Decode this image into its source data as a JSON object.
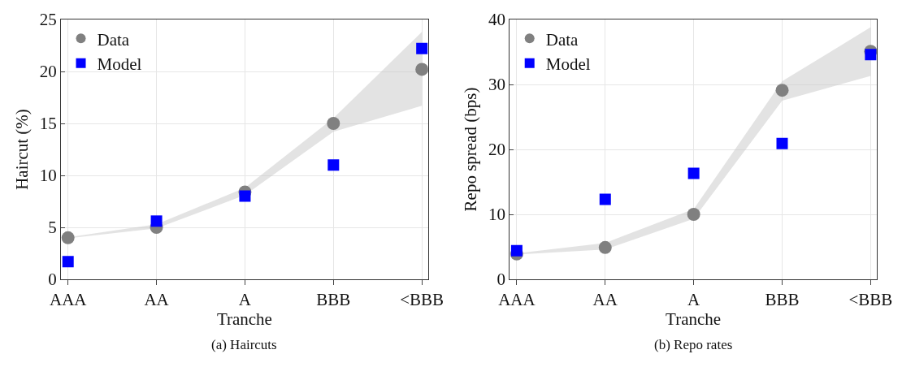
{
  "chart_data": [
    {
      "type": "scatter",
      "title": "(a) Haircuts",
      "xlabel": "Tranche",
      "ylabel": "Haircut (%)",
      "categories": [
        "AAA",
        "AA",
        "A",
        "BBB",
        "<BBB"
      ],
      "ylim": [
        0,
        25
      ],
      "yticks": [
        0,
        5,
        10,
        15,
        20,
        25
      ],
      "grid": true,
      "legend": "top left",
      "series": [
        {
          "name": "Data",
          "color": "#808080",
          "marker": "circle",
          "values": [
            4.0,
            5.0,
            8.4,
            15.0,
            20.2
          ],
          "lower": [
            3.95,
            4.9,
            8.1,
            14.2,
            16.7
          ],
          "upper": [
            4.05,
            5.3,
            8.8,
            15.5,
            23.8
          ]
        },
        {
          "name": "Model",
          "color": "#0000ff",
          "marker": "square",
          "values": [
            1.7,
            5.6,
            8.0,
            11.0,
            22.2
          ]
        }
      ]
    },
    {
      "type": "scatter",
      "title": "(b) Repo rates",
      "xlabel": "Tranche",
      "ylabel": "Repo spread (bps)",
      "categories": [
        "AAA",
        "AA",
        "A",
        "BBB",
        "<BBB"
      ],
      "ylim": [
        0,
        40
      ],
      "yticks": [
        0,
        10,
        20,
        30,
        40
      ],
      "grid": true,
      "legend": "top left",
      "series": [
        {
          "name": "Data",
          "color": "#808080",
          "marker": "circle",
          "values": [
            3.9,
            4.9,
            10.0,
            29.1,
            35.1
          ],
          "lower": [
            3.8,
            4.6,
            9.3,
            27.5,
            31.3
          ],
          "upper": [
            4.0,
            5.6,
            10.8,
            30.5,
            38.8
          ]
        },
        {
          "name": "Model",
          "color": "#0000ff",
          "marker": "square",
          "values": [
            4.4,
            12.3,
            16.3,
            20.9,
            34.6
          ]
        }
      ]
    }
  ]
}
